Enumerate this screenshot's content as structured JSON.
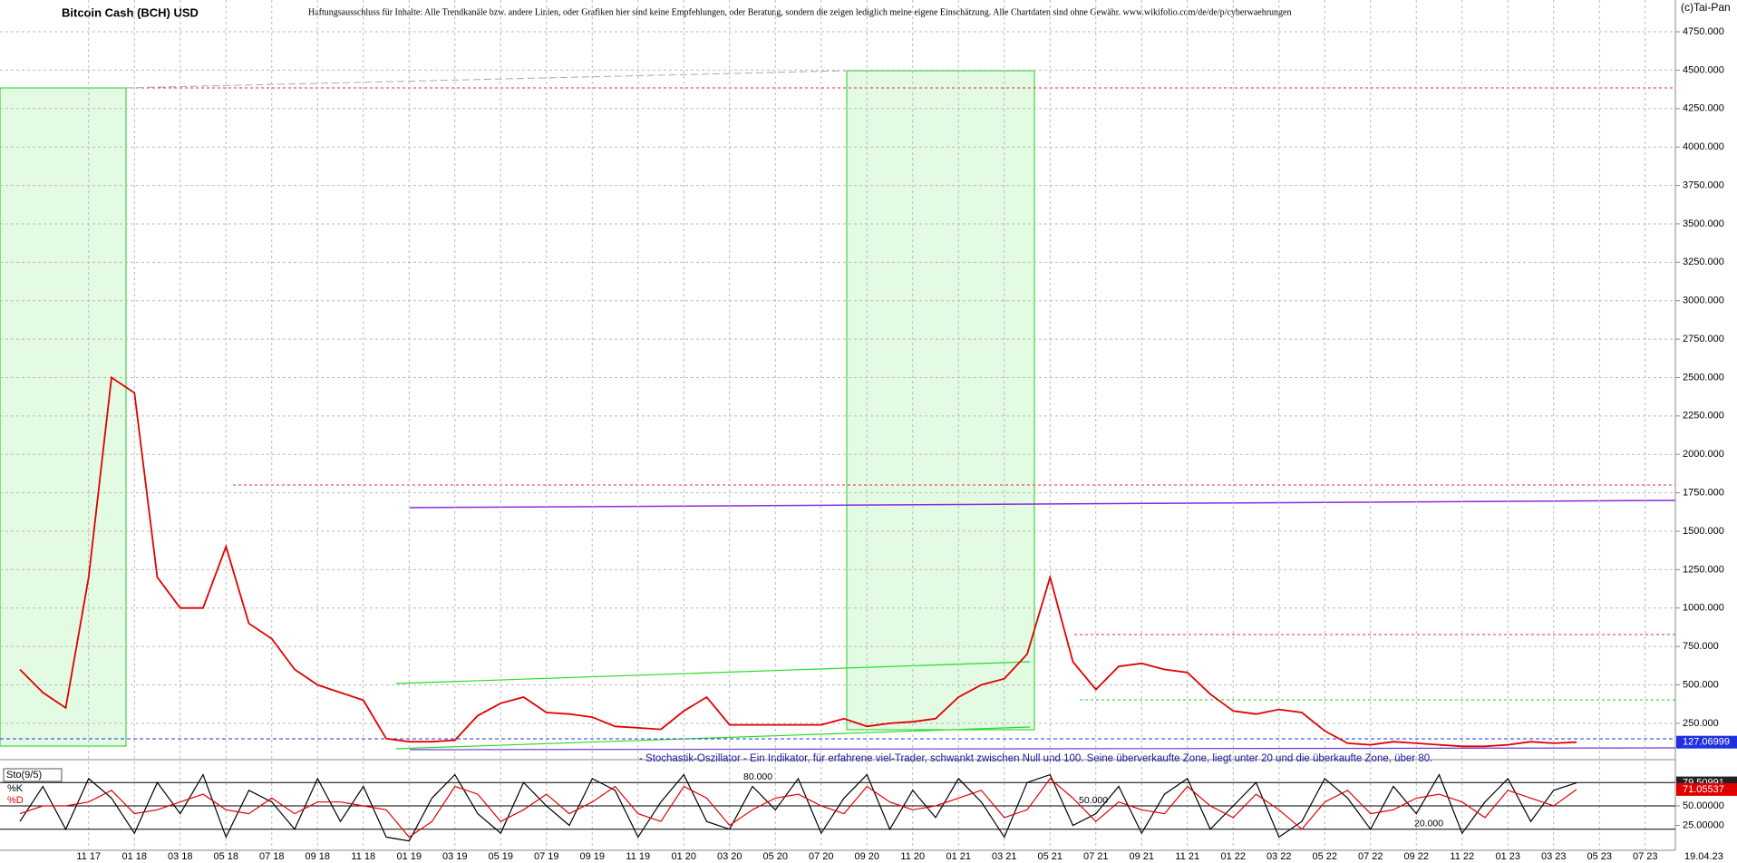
{
  "chart_data": [
    {
      "type": "line",
      "title": "Bitcoin Cash (BCH) USD",
      "subtitle": "Haftungsausschluss für Inhalte: Alle Trendkanäle bzw. andere Linien, oder Grafiken hier sind keine Empfehlungen, oder Beratung, sondern die zeigen lediglich meine eigene Einschätzung. Alle Chartdaten sind ohne Gewähr.  www.wikifolio.com/de/de/p/cyberwaehrungen",
      "source": "(c)Tai-Pan",
      "x_end_label": "19.04.23",
      "categories": [
        null,
        null,
        null,
        "11 17",
        null,
        "01 18",
        null,
        "03 18",
        null,
        "05 18",
        null,
        "07 18",
        null,
        "09 18",
        null,
        "11 18",
        null,
        "01 19",
        null,
        "03 19",
        null,
        "05 19",
        null,
        "07 19",
        null,
        "09 19",
        null,
        "11 19",
        null,
        "01 20",
        null,
        "03 20",
        null,
        "05 20",
        null,
        "07 20",
        null,
        "09 20",
        null,
        "11 20",
        null,
        "01 21",
        null,
        "03 21",
        null,
        "05 21",
        null,
        "07 21",
        null,
        "09 21",
        null,
        "11 21",
        null,
        "01 22",
        null,
        "03 22",
        null,
        "05 22",
        null,
        "07 22",
        null,
        "09 22",
        null,
        "11 22",
        null,
        "01 23",
        null,
        "03 23",
        null,
        "05 23",
        null,
        "07 23"
      ],
      "values": [
        600,
        450,
        350,
        1200,
        2500,
        2400,
        1200,
        1000,
        1000,
        1400,
        900,
        800,
        600,
        500,
        450,
        400,
        150,
        130,
        130,
        140,
        300,
        380,
        420,
        320,
        310,
        290,
        230,
        220,
        210,
        330,
        420,
        240,
        240,
        240,
        240,
        240,
        280,
        230,
        250,
        260,
        280,
        420,
        500,
        540,
        700,
        1200,
        650,
        470,
        620,
        640,
        600,
        580,
        440,
        330,
        310,
        340,
        320,
        200,
        120,
        110,
        130,
        120,
        110,
        100,
        100,
        110,
        130,
        120,
        127.06999,
        null,
        null,
        null
      ],
      "color": "#e00000",
      "ylim": [
        25,
        4945
      ],
      "yticks": [
        {
          "value": 250,
          "label": "250.000"
        },
        {
          "value": 500,
          "label": "500.000"
        },
        {
          "value": 750,
          "label": "750.000"
        },
        {
          "value": 1000,
          "label": "1000.000"
        },
        {
          "value": 1250,
          "label": "1250.000"
        },
        {
          "value": 1500,
          "label": "1500.000"
        },
        {
          "value": 1750,
          "label": "1750.000"
        },
        {
          "value": 2000,
          "label": "2000.000"
        },
        {
          "value": 2250,
          "label": "2250.000"
        },
        {
          "value": 2500,
          "label": "2500.000"
        },
        {
          "value": 2750,
          "label": "2750.000"
        },
        {
          "value": 3000,
          "label": "3000.000"
        },
        {
          "value": 3250,
          "label": "3250.000"
        },
        {
          "value": 3500,
          "label": "3500.000"
        },
        {
          "value": 3750,
          "label": "3750.000"
        },
        {
          "value": 4000,
          "label": "4000.000"
        },
        {
          "value": 4250,
          "label": "4250.000"
        },
        {
          "value": 4500,
          "label": "4500.000"
        },
        {
          "value": 4750,
          "label": "4750.000"
        }
      ],
      "grid": true
    },
    {
      "type": "line",
      "title": "Sto(9/5)",
      "note": "- Stochastik-Oszillator - Ein Indikator, für erfahrene viel-Trader, schwankt zwischen Null und 100. Seine überverkaufte Zone, liegt unter 20 und die überkaufte Zone, über 80.",
      "series": [
        {
          "name": "%K",
          "color": "#000000",
          "values": [
            30,
            75,
            20,
            85,
            60,
            15,
            80,
            40,
            90,
            10,
            70,
            55,
            20,
            85,
            30,
            75,
            10,
            5,
            60,
            90,
            40,
            15,
            80,
            50,
            25,
            85,
            70,
            10,
            55,
            90,
            30,
            20,
            75,
            45,
            85,
            15,
            60,
            90,
            20,
            70,
            35,
            85,
            55,
            10,
            80,
            90,
            25,
            40,
            75,
            15,
            65,
            85,
            20,
            50,
            80,
            10,
            30,
            85,
            60,
            20,
            75,
            40,
            90,
            15,
            55,
            85,
            30,
            70,
            79.50991,
            null,
            null,
            null
          ]
        },
        {
          "name": "%D",
          "color": "#e00000",
          "values": [
            40,
            50,
            50,
            55,
            70,
            40,
            45,
            55,
            65,
            45,
            40,
            60,
            40,
            55,
            55,
            50,
            45,
            10,
            30,
            75,
            65,
            30,
            45,
            65,
            40,
            55,
            75,
            40,
            30,
            75,
            60,
            25,
            45,
            60,
            65,
            50,
            40,
            75,
            55,
            45,
            50,
            60,
            70,
            35,
            45,
            85,
            60,
            30,
            55,
            45,
            40,
            75,
            50,
            35,
            65,
            45,
            20,
            55,
            70,
            40,
            45,
            60,
            65,
            55,
            35,
            70,
            60,
            50,
            71.05537,
            null,
            null,
            null
          ]
        }
      ],
      "levels": [
        {
          "value": 80,
          "label": "80.000"
        },
        {
          "value": 50,
          "label": "50.000"
        },
        {
          "value": 20,
          "label": "20.000"
        }
      ],
      "ylim": [
        0,
        100
      ],
      "yticks": [
        {
          "value": 50,
          "label": "50.00000"
        },
        {
          "value": 25,
          "label": "25.00000"
        }
      ]
    }
  ]
}
